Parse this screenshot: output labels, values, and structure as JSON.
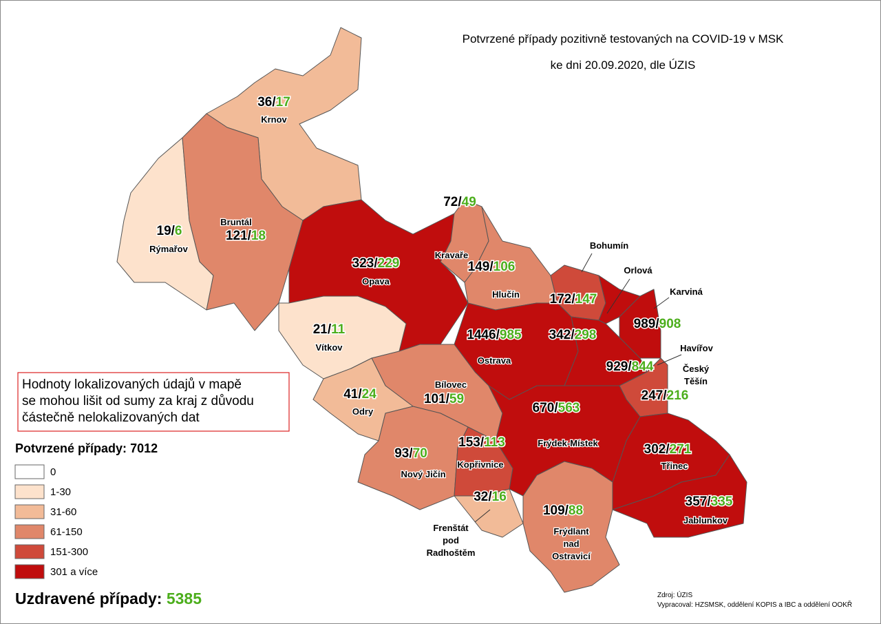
{
  "title": "Potvrzené případy pozitivně testovaných na COVID-19 v MSK",
  "subtitle": "ke dni 20.09.2020, dle ÚZIS",
  "note": [
    "Hodnoty lokalizovaných údajů v mapě",
    "se mohou lišit od sumy za kraj z důvodu",
    "částečně nelokalizovaných dat"
  ],
  "confirmed_total": {
    "label": "Potvrzené případy:",
    "value": 7012
  },
  "recovered_total": {
    "label": "Uzdravené případy:",
    "value": 5385
  },
  "separator": "/",
  "legend": [
    {
      "label": "0",
      "color": "#ffffff"
    },
    {
      "label": "1-30",
      "color": "#fde2cc"
    },
    {
      "label": "31-60",
      "color": "#f2bb98"
    },
    {
      "label": "61-150",
      "color": "#e0876a"
    },
    {
      "label": "151-300",
      "color": "#cf4a3a"
    },
    {
      "label": "301 a více",
      "color": "#c00d0d"
    }
  ],
  "regions": [
    {
      "name": [
        "Krnov"
      ],
      "confirmed": 36,
      "recovered": 17,
      "color": "#f2bb98"
    },
    {
      "name": [
        "Rýmařov"
      ],
      "confirmed": 19,
      "recovered": 6,
      "color": "#fde2cc"
    },
    {
      "name": [
        "Bruntál"
      ],
      "confirmed": 121,
      "recovered": 18,
      "color": "#e0876a"
    },
    {
      "name": [
        "Opava"
      ],
      "confirmed": 323,
      "recovered": 229,
      "color": "#c00d0d"
    },
    {
      "name": [
        "Kravaře"
      ],
      "confirmed": 72,
      "recovered": 49,
      "color": "#e0876a"
    },
    {
      "name": [
        "Hlučín"
      ],
      "confirmed": 149,
      "recovered": 106,
      "color": "#e0876a"
    },
    {
      "name": [
        "Vítkov"
      ],
      "confirmed": 21,
      "recovered": 11,
      "color": "#fde2cc"
    },
    {
      "name": [
        "Bohumín"
      ],
      "confirmed": 172,
      "recovered": 147,
      "color": "#cf4a3a"
    },
    {
      "name": [
        "Orlová"
      ],
      "confirmed": 342,
      "recovered": 298,
      "color": "#c00d0d"
    },
    {
      "name": [
        "Karviná"
      ],
      "confirmed": 989,
      "recovered": 908,
      "color": "#c00d0d"
    },
    {
      "name": [
        "Ostrava"
      ],
      "confirmed": 1446,
      "recovered": 985,
      "color": "#c00d0d"
    },
    {
      "name": [
        "Havířov"
      ],
      "confirmed": 929,
      "recovered": 844,
      "color": "#c00d0d"
    },
    {
      "name": [
        "Český",
        "Těšín"
      ],
      "confirmed": 247,
      "recovered": 216,
      "color": "#cf4a3a"
    },
    {
      "name": [
        "Bílovec"
      ],
      "confirmed": 101,
      "recovered": 59,
      "color": "#e0876a"
    },
    {
      "name": [
        "Odry"
      ],
      "confirmed": 41,
      "recovered": 24,
      "color": "#f2bb98"
    },
    {
      "name": [
        "Frýdek-Místek"
      ],
      "confirmed": 670,
      "recovered": 563,
      "color": "#c00d0d"
    },
    {
      "name": [
        "Nový Jičín"
      ],
      "confirmed": 93,
      "recovered": 70,
      "color": "#e0876a"
    },
    {
      "name": [
        "Kopřivnice"
      ],
      "confirmed": 153,
      "recovered": 113,
      "color": "#cf4a3a"
    },
    {
      "name": [
        "Frenštát",
        "pod",
        "Radhoštěm"
      ],
      "confirmed": 32,
      "recovered": 16,
      "color": "#f2bb98"
    },
    {
      "name": [
        "Frýdlant",
        "nad",
        "Ostravicí"
      ],
      "confirmed": 109,
      "recovered": 88,
      "color": "#e0876a"
    },
    {
      "name": [
        "Třinec"
      ],
      "confirmed": 302,
      "recovered": 271,
      "color": "#c00d0d"
    },
    {
      "name": [
        "Jablunkov"
      ],
      "confirmed": 357,
      "recovered": 335,
      "color": "#c00d0d"
    }
  ],
  "source": "Zdroj: ÚZIS",
  "author": "Vypracoval: HZSMSK, oddělení KOPIS a IBC a oddělení OOKŘ"
}
